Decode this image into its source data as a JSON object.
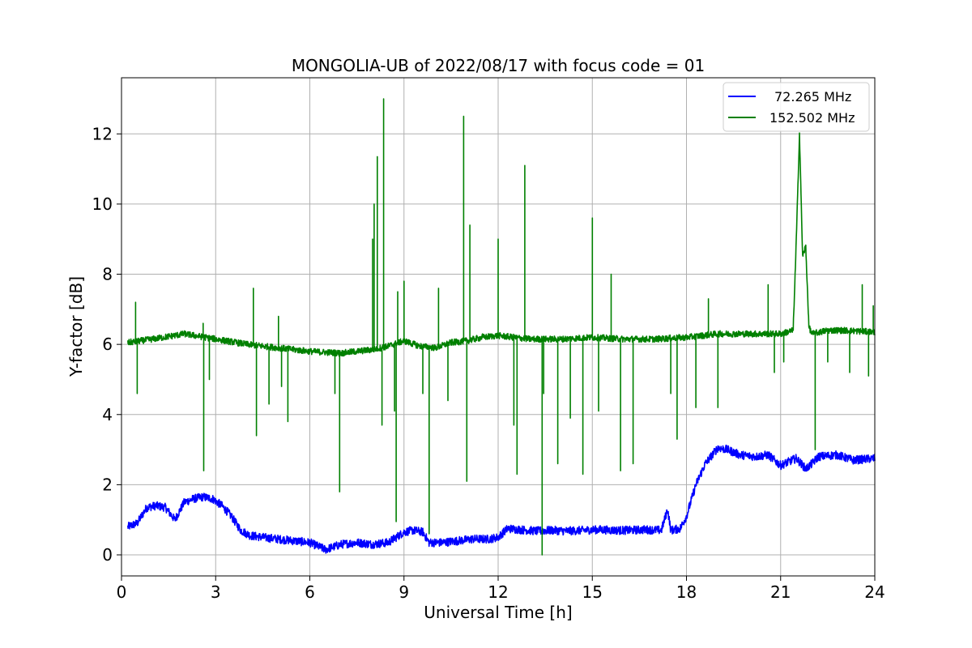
{
  "chart_data": {
    "type": "line",
    "title": "MONGOLIA-UB of 2022/08/17 with focus code = 01",
    "xlabel": "Universal Time [h]",
    "ylabel": "Y-factor [dB]",
    "xlim": [
      0,
      24
    ],
    "ylim": [
      -0.6,
      13.6
    ],
    "x_ticks": [
      0,
      3,
      6,
      9,
      12,
      15,
      18,
      21,
      24
    ],
    "y_ticks": [
      0,
      2,
      4,
      6,
      8,
      10,
      12
    ],
    "grid": true,
    "legend_position": "top-right",
    "series": [
      {
        "name": "72.265 MHz",
        "color": "#0000ff",
        "x": [
          0.2,
          0.5,
          0.8,
          1.1,
          1.4,
          1.7,
          2.0,
          2.3,
          2.6,
          2.9,
          3.2,
          3.5,
          3.8,
          4.1,
          4.5,
          5.0,
          5.5,
          6.0,
          6.5,
          7.0,
          7.5,
          8.0,
          8.5,
          9.0,
          9.3,
          9.6,
          9.8,
          10.2,
          10.7,
          11.2,
          11.7,
          12.0,
          12.3,
          12.7,
          13.2,
          13.7,
          14.2,
          14.7,
          15.2,
          15.7,
          16.2,
          16.7,
          17.2,
          17.4,
          17.5,
          17.8,
          18.0,
          18.3,
          18.6,
          19.0,
          19.3,
          19.7,
          20.2,
          20.6,
          21.0,
          21.5,
          21.8,
          22.0,
          22.2,
          22.8,
          23.3,
          24.0
        ],
        "y": [
          0.8,
          0.9,
          1.35,
          1.4,
          1.35,
          1.0,
          1.5,
          1.6,
          1.65,
          1.6,
          1.4,
          1.1,
          0.7,
          0.55,
          0.5,
          0.45,
          0.4,
          0.35,
          0.15,
          0.3,
          0.35,
          0.3,
          0.35,
          0.65,
          0.7,
          0.65,
          0.35,
          0.35,
          0.4,
          0.45,
          0.45,
          0.5,
          0.75,
          0.72,
          0.68,
          0.7,
          0.68,
          0.7,
          0.72,
          0.7,
          0.7,
          0.72,
          0.7,
          1.3,
          0.7,
          0.75,
          1.1,
          2.0,
          2.6,
          3.05,
          3.0,
          2.85,
          2.8,
          2.85,
          2.55,
          2.75,
          2.45,
          2.6,
          2.8,
          2.85,
          2.7,
          2.75
        ]
      },
      {
        "name": "152.502 MHz",
        "color": "#008000",
        "x": [
          0.2,
          1.0,
          2.0,
          3.0,
          4.0,
          5.0,
          6.0,
          7.0,
          8.0,
          8.5,
          9.0,
          9.5,
          10.0,
          10.5,
          11.0,
          11.5,
          12.0,
          13.0,
          14.0,
          15.0,
          16.0,
          17.0,
          18.0,
          19.0,
          20.0,
          21.0,
          21.4,
          21.5,
          21.6,
          21.7,
          21.8,
          21.9,
          22.0,
          22.5,
          23.0,
          24.0
        ],
        "y": [
          6.05,
          6.15,
          6.3,
          6.15,
          6.0,
          5.9,
          5.8,
          5.75,
          5.85,
          5.95,
          6.1,
          5.95,
          5.9,
          6.05,
          6.1,
          6.2,
          6.25,
          6.15,
          6.15,
          6.2,
          6.15,
          6.15,
          6.2,
          6.3,
          6.3,
          6.3,
          6.4,
          9.0,
          12.0,
          8.5,
          8.8,
          6.5,
          6.3,
          6.4,
          6.4,
          6.35
        ],
        "spikes": [
          {
            "x": 0.45,
            "y": 7.2
          },
          {
            "x": 0.5,
            "y": 4.6
          },
          {
            "x": 2.6,
            "y": 6.6
          },
          {
            "x": 2.62,
            "y": 2.4
          },
          {
            "x": 2.8,
            "y": 5.0
          },
          {
            "x": 4.2,
            "y": 7.6
          },
          {
            "x": 4.3,
            "y": 3.4
          },
          {
            "x": 4.7,
            "y": 4.3
          },
          {
            "x": 5.0,
            "y": 6.8
          },
          {
            "x": 5.1,
            "y": 4.8
          },
          {
            "x": 5.3,
            "y": 3.8
          },
          {
            "x": 6.8,
            "y": 4.6
          },
          {
            "x": 6.95,
            "y": 1.8
          },
          {
            "x": 8.0,
            "y": 9.0
          },
          {
            "x": 8.05,
            "y": 10.0
          },
          {
            "x": 8.15,
            "y": 11.35
          },
          {
            "x": 8.3,
            "y": 3.7
          },
          {
            "x": 8.35,
            "y": 13.0
          },
          {
            "x": 8.7,
            "y": 4.1
          },
          {
            "x": 8.75,
            "y": 0.95
          },
          {
            "x": 8.8,
            "y": 7.5
          },
          {
            "x": 9.0,
            "y": 7.8
          },
          {
            "x": 9.6,
            "y": 4.6
          },
          {
            "x": 9.8,
            "y": 0.6
          },
          {
            "x": 10.1,
            "y": 7.6
          },
          {
            "x": 10.4,
            "y": 4.4
          },
          {
            "x": 10.9,
            "y": 12.5
          },
          {
            "x": 11.0,
            "y": 2.1
          },
          {
            "x": 11.1,
            "y": 9.4
          },
          {
            "x": 11.5,
            "y": 6.3
          },
          {
            "x": 12.0,
            "y": 9.0
          },
          {
            "x": 12.5,
            "y": 3.7
          },
          {
            "x": 12.6,
            "y": 2.3
          },
          {
            "x": 12.85,
            "y": 11.1
          },
          {
            "x": 13.4,
            "y": 0.0
          },
          {
            "x": 13.45,
            "y": 4.6
          },
          {
            "x": 13.9,
            "y": 2.6
          },
          {
            "x": 14.3,
            "y": 3.9
          },
          {
            "x": 14.7,
            "y": 2.3
          },
          {
            "x": 15.0,
            "y": 9.6
          },
          {
            "x": 15.2,
            "y": 4.1
          },
          {
            "x": 15.6,
            "y": 8.0
          },
          {
            "x": 15.9,
            "y": 2.4
          },
          {
            "x": 16.3,
            "y": 2.6
          },
          {
            "x": 17.5,
            "y": 4.6
          },
          {
            "x": 17.7,
            "y": 3.3
          },
          {
            "x": 18.3,
            "y": 4.2
          },
          {
            "x": 18.7,
            "y": 7.3
          },
          {
            "x": 19.0,
            "y": 4.2
          },
          {
            "x": 20.6,
            "y": 7.7
          },
          {
            "x": 20.8,
            "y": 5.2
          },
          {
            "x": 21.1,
            "y": 5.5
          },
          {
            "x": 22.1,
            "y": 3.0
          },
          {
            "x": 22.5,
            "y": 5.5
          },
          {
            "x": 23.2,
            "y": 5.2
          },
          {
            "x": 23.6,
            "y": 7.7
          },
          {
            "x": 23.8,
            "y": 5.1
          },
          {
            "x": 23.95,
            "y": 7.1
          }
        ]
      }
    ]
  }
}
